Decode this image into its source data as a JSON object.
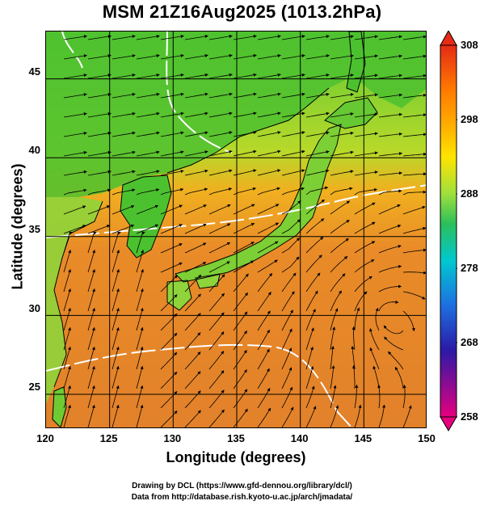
{
  "title": "MSM 21Z16Aug2025 (1013.2hPa)",
  "xaxis": {
    "label": "Longitude (degrees)",
    "ticks": [
      "120",
      "125",
      "130",
      "135",
      "140",
      "145",
      "150"
    ],
    "range": [
      120,
      150
    ]
  },
  "yaxis": {
    "label": "Latitude  (degrees)",
    "ticks": [
      "25",
      "30",
      "35",
      "40",
      "45"
    ],
    "range": [
      22.4,
      47.6
    ]
  },
  "colorbar": {
    "ticks": [
      "308",
      "298",
      "288",
      "278",
      "268",
      "258"
    ],
    "range": [
      258,
      308
    ],
    "colors": [
      "#e6007f",
      "#2b1aa6",
      "#1e6fe0",
      "#00c8d0",
      "#2bbf5a",
      "#9ee03c",
      "#ffe400",
      "#ffb000",
      "#ff7a00",
      "#e62a16"
    ]
  },
  "map": {
    "ocean_color": "#e8862a",
    "land_color": "#3fb52d",
    "grid_color": "#000000",
    "streamline_color": "#000000",
    "contour_color": "#ffffff"
  },
  "credits": {
    "line1": "Drawing by DCL (https://www.gfd-dennou.org/library/dcl/)",
    "line2": "Data from http://database.rish.kyoto-u.ac.jp/arch/jmadata/"
  }
}
